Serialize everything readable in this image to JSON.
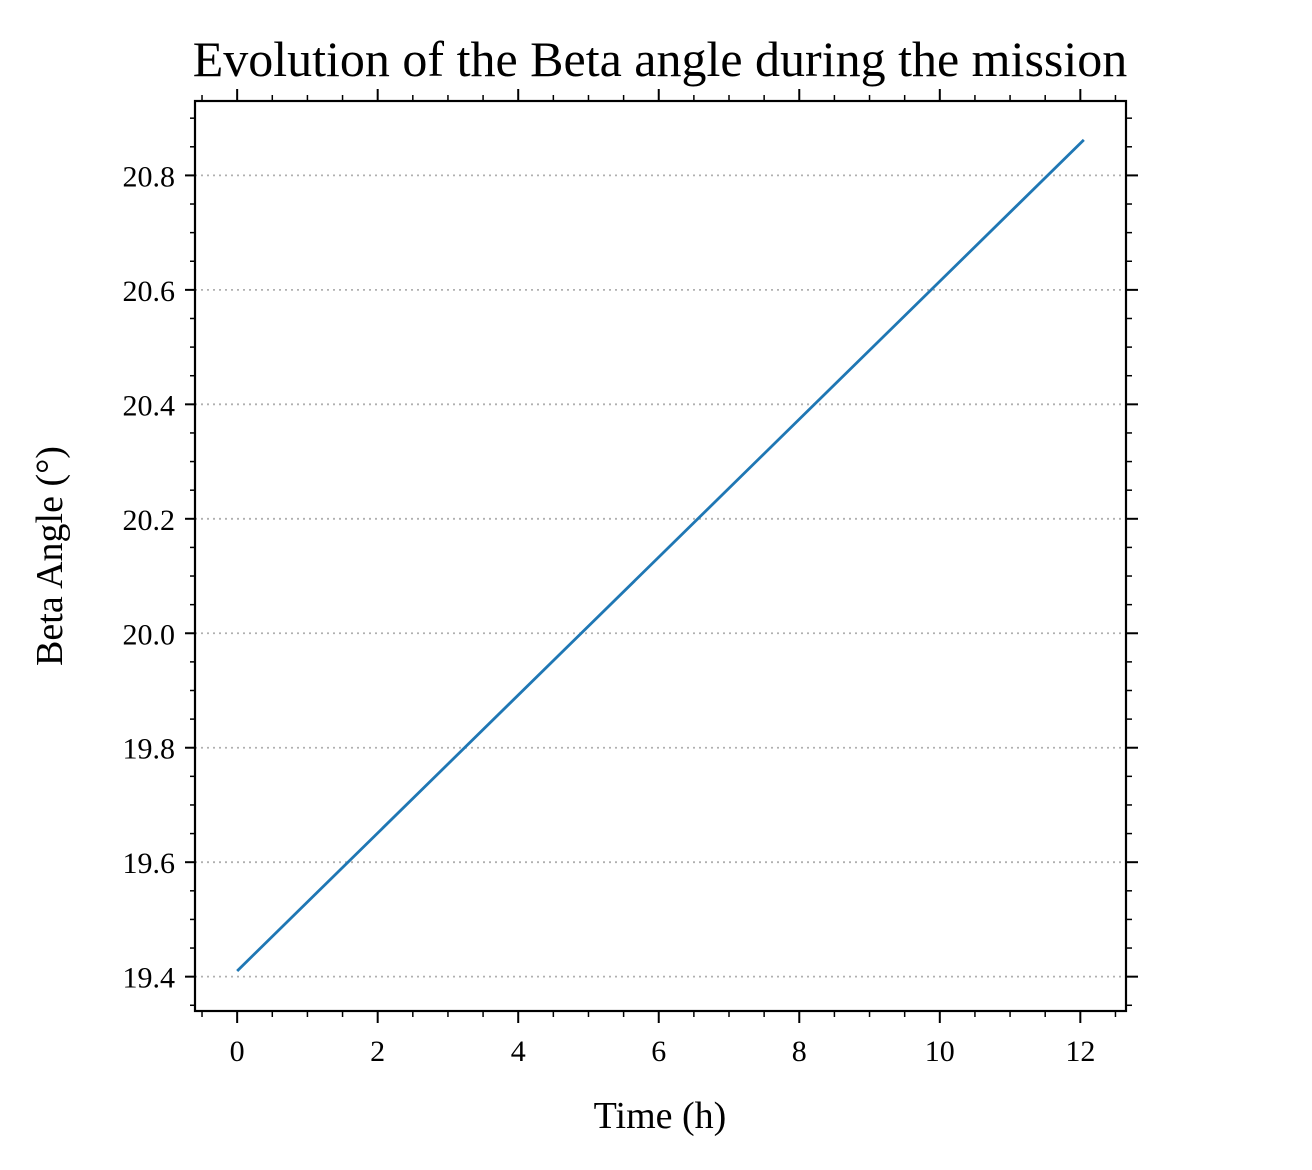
{
  "chart_data": {
    "type": "line",
    "title": "Evolution of the Beta angle during the mission",
    "xlabel": "Time (h)",
    "ylabel": "Beta Angle (°)",
    "xlim": [
      -0.6,
      12.65
    ],
    "ylim": [
      19.34,
      20.93
    ],
    "x_ticks": [
      0,
      2,
      4,
      6,
      8,
      10,
      12
    ],
    "x_tick_labels": [
      "0",
      "2",
      "4",
      "6",
      "8",
      "10",
      "12"
    ],
    "y_ticks": [
      19.4,
      19.6,
      19.8,
      20.0,
      20.2,
      20.4,
      20.6,
      20.8
    ],
    "y_tick_labels": [
      "19.4",
      "19.6",
      "19.8",
      "20.0",
      "20.2",
      "20.4",
      "20.6",
      "20.8"
    ],
    "grid": "horizontal dotted",
    "series": [
      {
        "x": [
          0,
          12.05
        ],
        "y": [
          19.41,
          20.862
        ],
        "color": "#1f77b4"
      }
    ]
  }
}
